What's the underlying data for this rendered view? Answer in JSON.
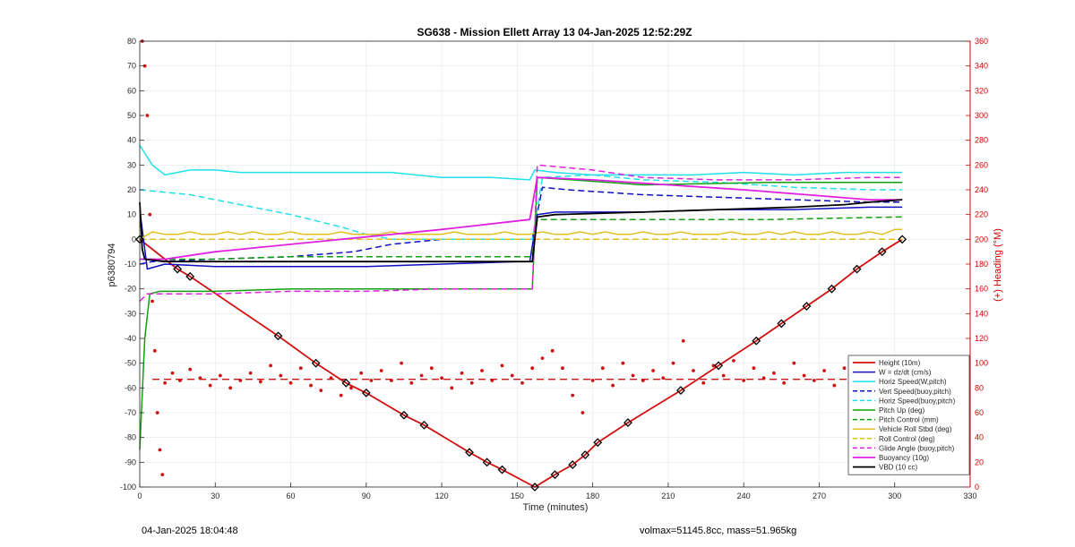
{
  "footer": {
    "timestamp": "04-Jan-2025 18:04:48",
    "config": "volmax=51145.8cc, mass=51.965kg"
  },
  "chart_data": {
    "type": "line",
    "title": "SG638 - Mission Ellett Array 13 04-Jan-2025 12:52:29Z",
    "xlabel": "Time (minutes)",
    "ylabel": "p6380794",
    "y2label": "(+) Heading (°M)",
    "xlim": [
      0,
      330
    ],
    "ylim": [
      -100,
      80
    ],
    "y2lim": [
      0,
      360
    ],
    "xticks": [
      0,
      30,
      60,
      90,
      120,
      150,
      180,
      210,
      240,
      270,
      300,
      330
    ],
    "yticks": [
      -100,
      -90,
      -80,
      -70,
      -60,
      -50,
      -40,
      -30,
      -20,
      -10,
      0,
      10,
      20,
      30,
      40,
      50,
      60,
      70,
      80
    ],
    "y2ticks": [
      0,
      20,
      40,
      60,
      80,
      100,
      120,
      140,
      160,
      180,
      200,
      220,
      240,
      260,
      280,
      300,
      320,
      340,
      360
    ],
    "grid": true,
    "legend_position": "bottom-right",
    "colors": {
      "right_axis": "#d00000",
      "grid": "#e6e6e6",
      "red": "#d01010",
      "blue": "#1010c0",
      "cyan": "#22e0e8",
      "green": "#10a010",
      "yellow": "#e0c020",
      "magenta": "#e020e0",
      "black": "#000000"
    },
    "series": [
      {
        "name": "Height (10m)",
        "color": "#d01010",
        "style": "solid",
        "width": 1.8,
        "x": [
          0,
          15,
          20,
          55,
          70,
          82,
          90,
          105,
          113,
          131,
          138,
          144,
          157,
          165,
          172,
          177,
          182,
          194,
          215,
          230,
          245,
          255,
          265,
          275,
          285,
          295,
          303
        ],
        "y": [
          0,
          -12,
          -15,
          -39,
          -50,
          -58,
          -62,
          -71,
          -75,
          -86,
          -90,
          -93,
          -100,
          -95,
          -91,
          -87,
          -82,
          -74,
          -61,
          -51,
          -41,
          -34,
          -27,
          -20,
          -12,
          -5,
          0
        ]
      },
      {
        "name": "W = dz/dt (cm/s)",
        "color": "#1010c0",
        "style": "solid",
        "width": 1.5,
        "x": [
          0,
          3,
          10,
          30,
          60,
          90,
          120,
          150,
          155,
          158,
          165,
          180,
          200,
          230,
          260,
          290,
          303
        ],
        "y": [
          12,
          -12,
          -10,
          -11,
          -11,
          -11,
          -10,
          -9,
          -9,
          10,
          11,
          11,
          11,
          12,
          12,
          13,
          13
        ]
      },
      {
        "name": "Horiz Speed(W,pitch)",
        "color": "#22e0e8",
        "style": "solid",
        "width": 1.5,
        "x": [
          0,
          5,
          10,
          20,
          30,
          40,
          60,
          80,
          100,
          120,
          140,
          155,
          157,
          165,
          180,
          200,
          220,
          240,
          260,
          280,
          303
        ],
        "y": [
          38,
          30,
          26,
          28,
          28,
          27,
          27,
          27,
          27,
          25,
          25,
          24,
          28,
          27,
          26,
          26,
          26,
          27,
          26,
          27,
          27
        ]
      },
      {
        "name": "Vert Speed(buoy,pitch)",
        "color": "#1010c0",
        "style": "dashed",
        "width": 1.5,
        "x": [
          0,
          5,
          30,
          60,
          85,
          100,
          120,
          150,
          156,
          160,
          170,
          200,
          230,
          260,
          290,
          303
        ],
        "y": [
          -10,
          -9,
          -8,
          -7,
          -5,
          -2,
          0,
          0,
          0,
          21,
          20,
          18,
          17,
          16,
          15,
          15
        ]
      },
      {
        "name": "Horiz Speed(buoy,pitch)",
        "color": "#22e0e8",
        "style": "dashed",
        "width": 1.5,
        "x": [
          0,
          20,
          40,
          60,
          80,
          90,
          100,
          120,
          150,
          156,
          160,
          180,
          200,
          230,
          260,
          290,
          303
        ],
        "y": [
          20,
          18,
          14,
          10,
          5,
          2,
          0,
          0,
          0,
          0,
          25,
          26,
          24,
          23,
          21,
          20,
          20
        ]
      },
      {
        "name": "Pitch Up (deg)",
        "color": "#10a010",
        "style": "solid",
        "width": 1.5,
        "x": [
          0,
          2,
          4,
          8,
          30,
          60,
          90,
          120,
          150,
          156,
          158,
          200,
          250,
          300,
          303
        ],
        "y": [
          -85,
          -40,
          -22,
          -21,
          -21,
          -20,
          -20,
          -20,
          -20,
          -20,
          25,
          22,
          23,
          23,
          23
        ]
      },
      {
        "name": "Pitch Control (mm)",
        "color": "#10a010",
        "style": "dashed",
        "width": 1.5,
        "x": [
          0,
          5,
          30,
          60,
          90,
          120,
          150,
          156,
          158,
          200,
          250,
          300,
          303
        ],
        "y": [
          -8,
          -8,
          -8,
          -7,
          -7,
          -7,
          -7,
          -7,
          8,
          8,
          8,
          9,
          9
        ]
      },
      {
        "name": "Vehicle Roll Stbd (deg)",
        "color": "#e0c020",
        "style": "solid",
        "width": 1.5,
        "x": [
          0,
          5,
          10,
          15,
          20,
          25,
          30,
          35,
          40,
          45,
          50,
          55,
          60,
          65,
          70,
          75,
          80,
          85,
          90,
          95,
          100,
          105,
          110,
          115,
          120,
          125,
          130,
          135,
          140,
          145,
          150,
          155,
          160,
          165,
          170,
          175,
          180,
          185,
          190,
          195,
          200,
          205,
          210,
          215,
          220,
          225,
          230,
          235,
          240,
          245,
          250,
          255,
          260,
          265,
          270,
          275,
          280,
          285,
          290,
          295,
          300,
          303
        ],
        "y": [
          0,
          3,
          2,
          2,
          3,
          2,
          2,
          3,
          2,
          3,
          2,
          2,
          3,
          2,
          2,
          2,
          3,
          2,
          2,
          2,
          3,
          2,
          2,
          2,
          2,
          3,
          2,
          2,
          2,
          3,
          2,
          2,
          3,
          2,
          2,
          3,
          2,
          3,
          2,
          2,
          3,
          2,
          2,
          3,
          2,
          2,
          2,
          3,
          2,
          2,
          3,
          2,
          3,
          2,
          2,
          3,
          2,
          2,
          3,
          2,
          4,
          4
        ]
      },
      {
        "name": "Roll Control (deg)",
        "color": "#e0c020",
        "style": "dashed",
        "width": 1.5,
        "x": [
          0,
          30,
          60,
          90,
          120,
          150,
          156,
          158,
          200,
          250,
          303
        ],
        "y": [
          0,
          0,
          0,
          0,
          0,
          0,
          0,
          0,
          0,
          0,
          0
        ]
      },
      {
        "name": "Glide Angle (buoy,pitch)",
        "color": "#e020e0",
        "style": "dashed",
        "width": 1.5,
        "x": [
          0,
          3,
          10,
          30,
          60,
          90,
          120,
          150,
          156,
          158,
          180,
          200,
          230,
          260,
          290,
          303
        ],
        "y": [
          -25,
          -22,
          -22,
          -22,
          -21,
          -21,
          -20,
          -20,
          -20,
          30,
          28,
          25,
          24,
          24,
          25,
          25
        ]
      },
      {
        "name": "Buoyancy (10g)",
        "color": "#e020e0",
        "style": "solid",
        "width": 1.8,
        "x": [
          0,
          10,
          30,
          60,
          90,
          120,
          155,
          158,
          180,
          210,
          240,
          265,
          290,
          303
        ],
        "y": [
          -8,
          -8,
          -5,
          -2,
          1,
          4,
          8,
          25,
          24,
          22,
          20,
          18,
          16,
          16
        ]
      },
      {
        "name": "VBD (10 cc)",
        "color": "#000000",
        "style": "solid",
        "width": 1.8,
        "x": [
          0,
          1,
          2,
          10,
          30,
          60,
          90,
          120,
          155,
          156,
          158,
          165,
          200,
          230,
          260,
          280,
          290,
          303
        ],
        "y": [
          15,
          -4,
          -8,
          -9,
          -9,
          -9,
          -9,
          -9,
          -9,
          -9,
          9,
          10,
          11,
          12,
          13,
          14,
          15,
          16
        ]
      }
    ],
    "heading_reference": {
      "color": "#d01010",
      "style": "dashed",
      "value_deg": 87
    },
    "heading_points_deg": [
      [
        1,
        360
      ],
      [
        2,
        340
      ],
      [
        3,
        300
      ],
      [
        4,
        220
      ],
      [
        5,
        150
      ],
      [
        6,
        110
      ],
      [
        7,
        60
      ],
      [
        8,
        30
      ],
      [
        9,
        10
      ],
      [
        10,
        84
      ],
      [
        13,
        92
      ],
      [
        16,
        86
      ],
      [
        20,
        95
      ],
      [
        24,
        88
      ],
      [
        28,
        82
      ],
      [
        32,
        90
      ],
      [
        36,
        80
      ],
      [
        40,
        86
      ],
      [
        44,
        92
      ],
      [
        48,
        85
      ],
      [
        52,
        98
      ],
      [
        56,
        90
      ],
      [
        60,
        84
      ],
      [
        64,
        96
      ],
      [
        68,
        82
      ],
      [
        72,
        78
      ],
      [
        76,
        88
      ],
      [
        80,
        74
      ],
      [
        84,
        80
      ],
      [
        88,
        92
      ],
      [
        92,
        86
      ],
      [
        96,
        94
      ],
      [
        100,
        86
      ],
      [
        104,
        100
      ],
      [
        108,
        84
      ],
      [
        112,
        90
      ],
      [
        116,
        96
      ],
      [
        120,
        88
      ],
      [
        124,
        80
      ],
      [
        128,
        92
      ],
      [
        132,
        84
      ],
      [
        136,
        94
      ],
      [
        140,
        86
      ],
      [
        144,
        98
      ],
      [
        148,
        90
      ],
      [
        152,
        84
      ],
      [
        156,
        96
      ],
      [
        160,
        104
      ],
      [
        164,
        110
      ],
      [
        168,
        96
      ],
      [
        172,
        74
      ],
      [
        176,
        60
      ],
      [
        180,
        86
      ],
      [
        184,
        96
      ],
      [
        188,
        82
      ],
      [
        192,
        100
      ],
      [
        196,
        90
      ],
      [
        200,
        86
      ],
      [
        204,
        94
      ],
      [
        208,
        88
      ],
      [
        212,
        100
      ],
      [
        216,
        118
      ],
      [
        220,
        94
      ],
      [
        224,
        84
      ],
      [
        228,
        98
      ],
      [
        232,
        90
      ],
      [
        236,
        102
      ],
      [
        240,
        86
      ],
      [
        244,
        96
      ],
      [
        248,
        88
      ],
      [
        252,
        92
      ],
      [
        256,
        84
      ],
      [
        260,
        100
      ],
      [
        264,
        90
      ],
      [
        268,
        86
      ],
      [
        272,
        94
      ],
      [
        276,
        82
      ],
      [
        280,
        96
      ],
      [
        284,
        90
      ],
      [
        288,
        84
      ],
      [
        292,
        98
      ],
      [
        296,
        88
      ],
      [
        300,
        104
      ]
    ]
  }
}
